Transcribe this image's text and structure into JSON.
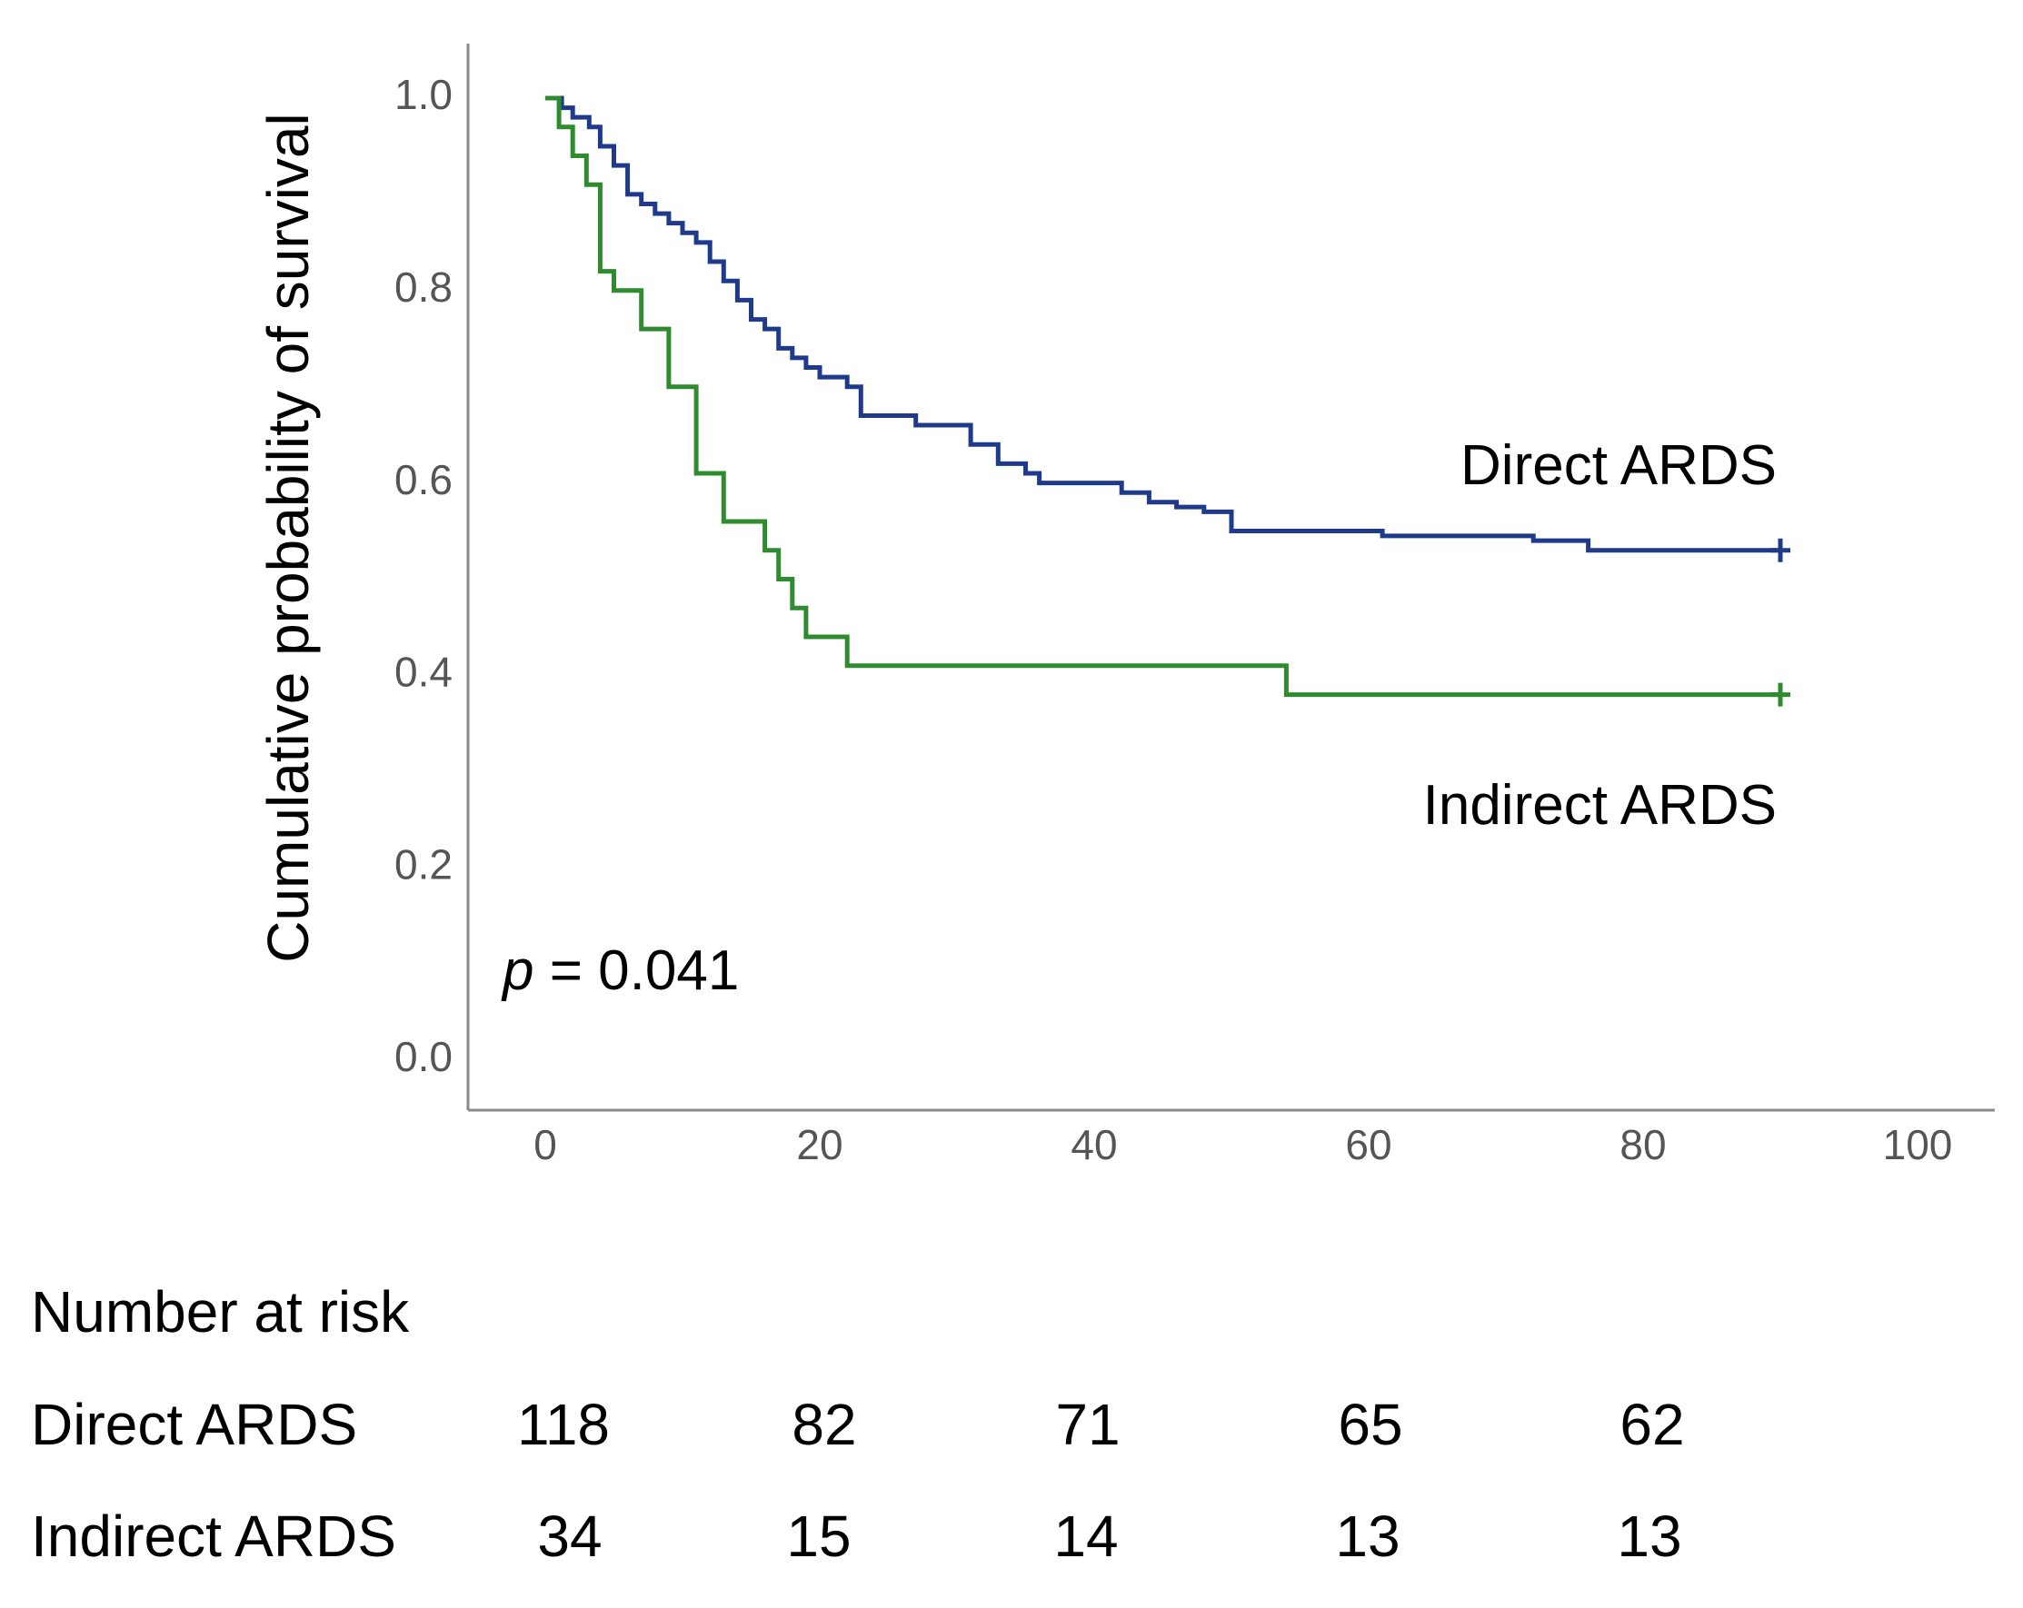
{
  "chart_data": {
    "type": "line",
    "subtype": "kaplan-meier-step",
    "ylabel": "Cumulative probability of survival",
    "xlabel": "",
    "xlim": [
      -5,
      105
    ],
    "ylim": [
      -0.05,
      1.05
    ],
    "x_ticks": [
      0,
      20,
      40,
      60,
      80,
      100
    ],
    "y_ticks": [
      0.0,
      0.2,
      0.4,
      0.6,
      0.8,
      1.0
    ],
    "x_tick_labels": [
      "0",
      "20",
      "40",
      "60",
      "80",
      "100"
    ],
    "y_tick_labels": [
      "0.0",
      "0.2",
      "0.4",
      "0.6",
      "0.8",
      "1.0"
    ],
    "grid": false,
    "annotation": {
      "p_symbol": "p",
      "p_text": " = 0.041"
    },
    "series": [
      {
        "name": "Direct ARDS",
        "color": "#1f3a8a",
        "censor_end": true,
        "points": [
          [
            0,
            1.0
          ],
          [
            1.2,
            0.99
          ],
          [
            2.0,
            0.98
          ],
          [
            3.2,
            0.97
          ],
          [
            4.0,
            0.95
          ],
          [
            5.0,
            0.93
          ],
          [
            6.0,
            0.9
          ],
          [
            7.0,
            0.89
          ],
          [
            8.0,
            0.88
          ],
          [
            9.0,
            0.87
          ],
          [
            10.0,
            0.86
          ],
          [
            11.0,
            0.85
          ],
          [
            12.0,
            0.83
          ],
          [
            13.0,
            0.81
          ],
          [
            14.0,
            0.79
          ],
          [
            15.0,
            0.77
          ],
          [
            16.0,
            0.76
          ],
          [
            17.0,
            0.74
          ],
          [
            18.0,
            0.73
          ],
          [
            19.0,
            0.72
          ],
          [
            20.0,
            0.71
          ],
          [
            22.0,
            0.7
          ],
          [
            23.0,
            0.67
          ],
          [
            27.0,
            0.66
          ],
          [
            31.0,
            0.64
          ],
          [
            33.0,
            0.62
          ],
          [
            35.0,
            0.61
          ],
          [
            36.0,
            0.6
          ],
          [
            42.0,
            0.59
          ],
          [
            44.0,
            0.58
          ],
          [
            46.0,
            0.575
          ],
          [
            48.0,
            0.57
          ],
          [
            50.0,
            0.55
          ],
          [
            61.0,
            0.545
          ],
          [
            72.0,
            0.54
          ],
          [
            76.0,
            0.53
          ],
          [
            90.0,
            0.53
          ]
        ]
      },
      {
        "name": "Indirect ARDS",
        "color": "#2e8b2e",
        "censor_end": true,
        "points": [
          [
            0,
            1.0
          ],
          [
            1.0,
            0.97
          ],
          [
            2.0,
            0.94
          ],
          [
            3.0,
            0.91
          ],
          [
            4.0,
            0.82
          ],
          [
            5.0,
            0.8
          ],
          [
            7.0,
            0.76
          ],
          [
            9.0,
            0.7
          ],
          [
            11.0,
            0.61
          ],
          [
            13.0,
            0.56
          ],
          [
            16.0,
            0.53
          ],
          [
            17.0,
            0.5
          ],
          [
            18.0,
            0.47
          ],
          [
            19.0,
            0.44
          ],
          [
            22.0,
            0.41
          ],
          [
            54.0,
            0.38
          ],
          [
            90.0,
            0.38
          ]
        ]
      }
    ],
    "series_labels": [
      "Direct ARDS",
      "Indirect ARDS"
    ]
  },
  "risk_table": {
    "title": "Number at risk",
    "rows": [
      {
        "label": "Direct ARDS",
        "values": [
          "118",
          "82",
          "71",
          "65",
          "62"
        ]
      },
      {
        "label": "Indirect ARDS",
        "values": [
          "34",
          "15",
          "14",
          "13",
          "13"
        ]
      }
    ]
  }
}
